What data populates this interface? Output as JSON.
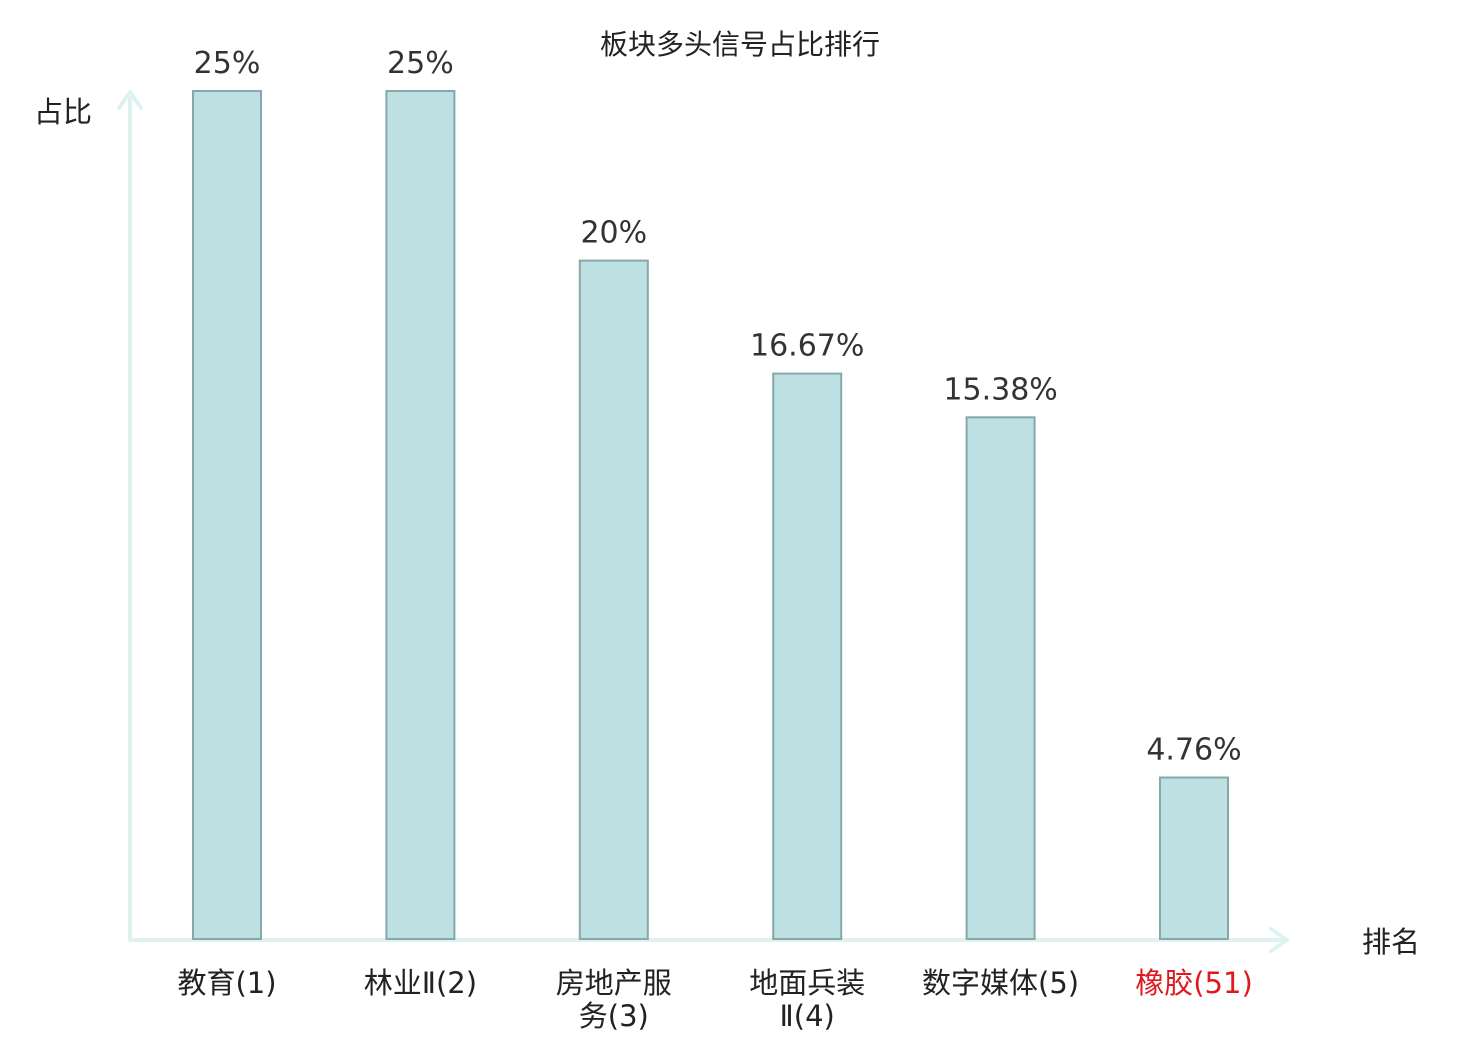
{
  "chart_data": {
    "type": "bar",
    "title": "板块多头信号占比排行",
    "ylabel": "占比",
    "xlabel": "排名",
    "categories": [
      [
        "教育(1)"
      ],
      [
        "林业Ⅱ(2)"
      ],
      [
        "房地产服",
        "务(3)"
      ],
      [
        "地面兵装",
        "Ⅱ(4)"
      ],
      [
        "数字媒体(5)"
      ],
      [
        "橡胶(51)"
      ]
    ],
    "values": [
      25,
      25,
      20,
      16.67,
      15.38,
      4.76
    ],
    "value_labels": [
      "25%",
      "25%",
      "20%",
      "16.67%",
      "15.38%",
      "4.76%"
    ],
    "highlight_index": 5,
    "ylim": [
      0,
      25
    ],
    "grid": false,
    "legend": "none"
  },
  "colors": {
    "bar_fill": "#bde0e2",
    "bar_stroke": "#86a8aa",
    "axis": "#def3f0",
    "text": "#333333",
    "highlight": "#e0191e"
  }
}
